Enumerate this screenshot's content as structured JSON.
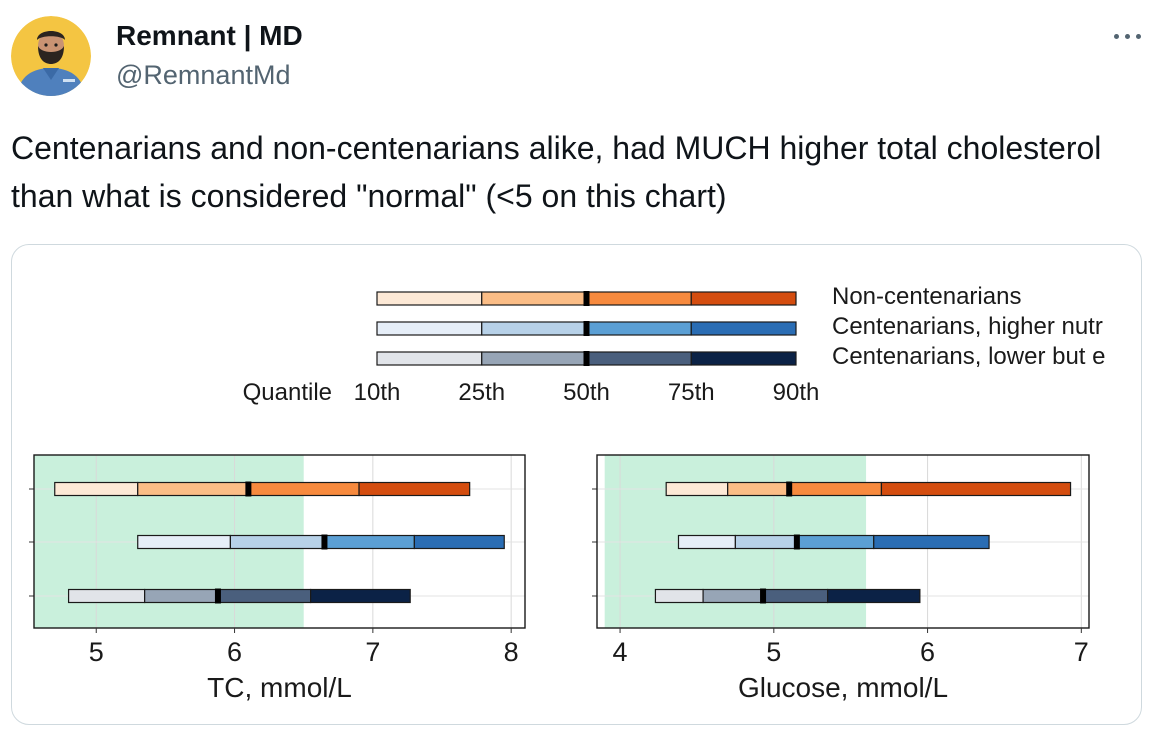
{
  "tweet": {
    "author_name": "Remnant | MD",
    "author_handle": "@RemnantMd",
    "text": "Centenarians and non-centenarians alike, had MUCH higher total cholesterol than what is considered \"normal\" (<5 on this chart)",
    "avatar_icon": "doctor-avatar-icon",
    "more_icon": "more-options-icon"
  },
  "chart_data": {
    "type": "bar",
    "subtype": "quantile-range",
    "legend": {
      "title": "Quantile",
      "quantiles": [
        "10th",
        "25th",
        "50th",
        "75th",
        "90th"
      ],
      "groups": [
        {
          "name": "Non-centenarians",
          "colors": [
            "#fde9d6",
            "#fbbd86",
            "#f78a3e",
            "#d44d0f"
          ]
        },
        {
          "name": "Centenarians, higher nutr",
          "colors": [
            "#e6eef8",
            "#b7d1e8",
            "#5b9fd4",
            "#2a6db4"
          ]
        },
        {
          "name": "Centenarians, lower but e",
          "colors": [
            "#e1e4e9",
            "#97a5b6",
            "#4a5f7d",
            "#0b2246"
          ]
        }
      ]
    },
    "panels": [
      {
        "xlabel": "TC, mmol/L",
        "xlim": [
          4.55,
          8.1
        ],
        "xticks": [
          5,
          6,
          7,
          8
        ],
        "normal_range": [
          4.55,
          6.5
        ],
        "series": [
          {
            "name": "Non-centenarians",
            "q10": 4.7,
            "q25": 5.3,
            "q50": 6.1,
            "q75": 6.9,
            "q90": 7.7
          },
          {
            "name": "Centenarians, higher nutr",
            "q10": 5.3,
            "q25": 5.97,
            "q50": 6.65,
            "q75": 7.3,
            "q90": 7.95
          },
          {
            "name": "Centenarians, lower but e",
            "q10": 4.8,
            "q25": 5.35,
            "q50": 5.88,
            "q75": 6.55,
            "q90": 7.27
          }
        ]
      },
      {
        "xlabel": "Glucose, mmol/L",
        "xlim": [
          3.85,
          7.05
        ],
        "xticks": [
          4,
          5,
          6,
          7
        ],
        "normal_range": [
          3.9,
          5.6
        ],
        "series": [
          {
            "name": "Non-centenarians",
            "q10": 4.3,
            "q25": 4.7,
            "q50": 5.1,
            "q75": 5.7,
            "q90": 6.93
          },
          {
            "name": "Centenarians, higher nutr",
            "q10": 4.38,
            "q25": 4.75,
            "q50": 5.15,
            "q75": 5.65,
            "q90": 6.4
          },
          {
            "name": "Centenarians, lower but e",
            "q10": 4.23,
            "q25": 4.54,
            "q50": 4.93,
            "q75": 5.35,
            "q90": 5.95
          }
        ]
      }
    ],
    "normal_range_color": "#c9f0dc",
    "grid": true
  }
}
